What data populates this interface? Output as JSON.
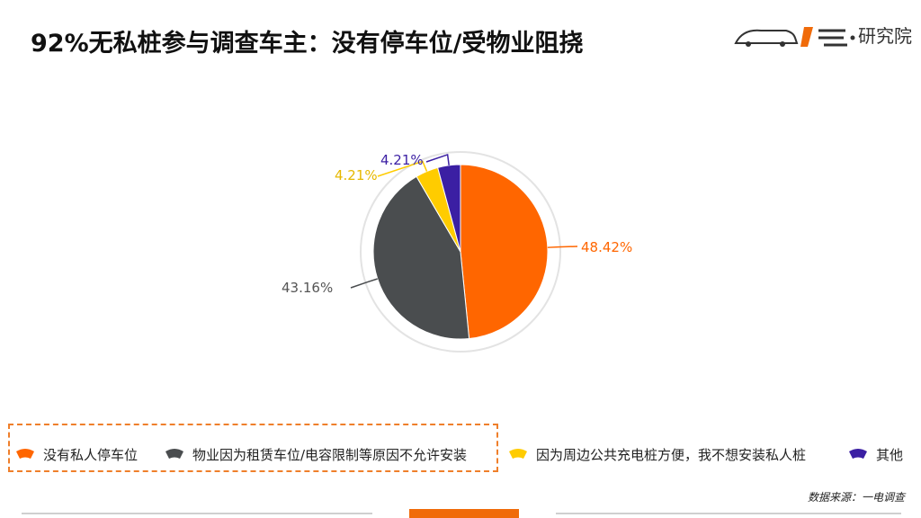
{
  "title": "92%无私桩参与调查车主：没有停车位/受物业阻挠",
  "brand": {
    "logo_text": "研究院",
    "logo_icon": "car-logo-icon"
  },
  "source": "数据来源：一电调查",
  "colors": {
    "accent": "#f06b0a",
    "legend_border": "#ef7f2b"
  },
  "chart_data": {
    "type": "pie",
    "series": [
      {
        "name": "没有私人停车位",
        "value": 48.42,
        "label": "48.42%",
        "color": "#ff6600"
      },
      {
        "name": "物业因为租赁车位/电容限制等原因不允许安装",
        "value": 43.16,
        "label": "43.16%",
        "color": "#4a4d4f"
      },
      {
        "name": "因为周边公共充电桩方便，我不想安装私人桩",
        "value": 4.21,
        "label": "4.21%",
        "color": "#ffcc00"
      },
      {
        "name": "其他",
        "value": 4.21,
        "label": "4.21%",
        "color": "#3b1fa3"
      }
    ],
    "legend_position": "bottom"
  }
}
